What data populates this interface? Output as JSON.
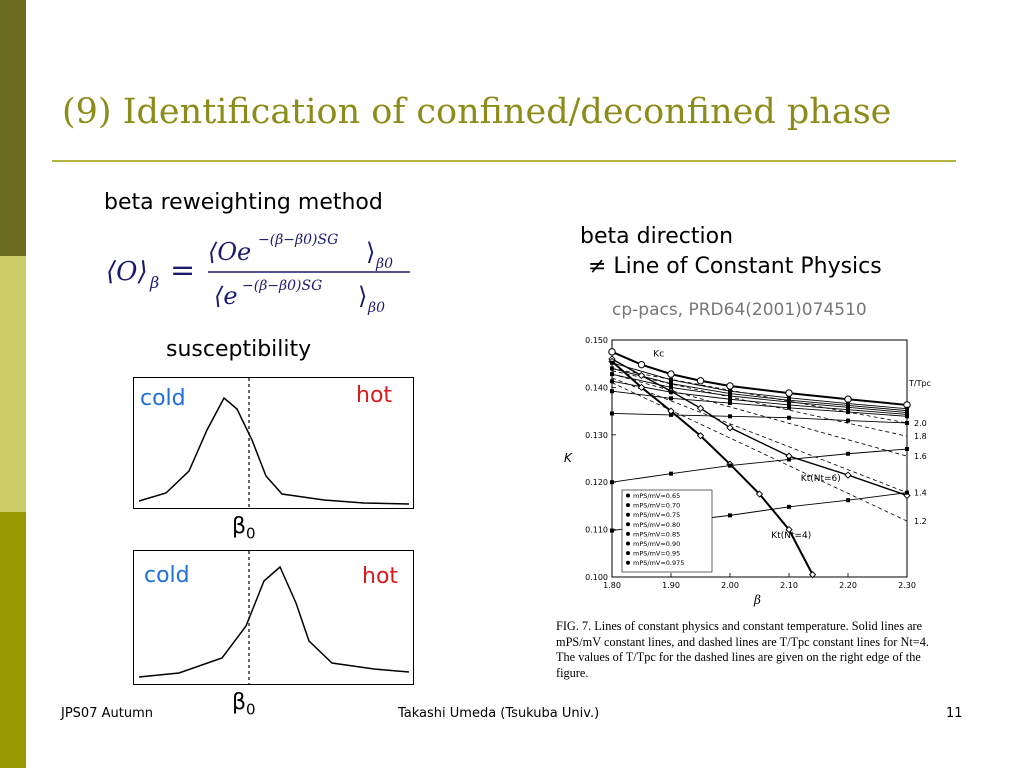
{
  "slide": {
    "title": "(9) Identification of confined/deconfined phase",
    "reweighting_label": "beta reweighting method",
    "beta_direction_line1": "beta direction",
    "beta_direction_line2": "≠ Line of Constant Physics",
    "citation": "cp-pacs, PRD64(2001)074510",
    "susceptibility_label": "susceptibility",
    "colors": {
      "title": "#8c8c1a",
      "cold": "#1f6fd6",
      "hot": "#d81b1b",
      "strip_dark": "#6b6b1f",
      "strip_light": "#cccc66",
      "strip_mid": "#999900"
    }
  },
  "formula": {
    "lhs": "⟨O⟩",
    "lhs_sub": "β",
    "equals": "=",
    "numerator": "⟨Oe",
    "numerator_exp": "−(β−β0)SG",
    "numerator_close": "⟩",
    "numerator_sub": "β0",
    "denominator": "⟨e",
    "denominator_exp": "−(β−β0)SG",
    "denominator_close": "⟩",
    "denominator_sub": "β0"
  },
  "plots": [
    {
      "cold": "cold",
      "hot": "hot",
      "beta": "β",
      "beta_sub": "0",
      "peak_position": "left-of-beta0"
    },
    {
      "cold": "cold",
      "hot": "hot",
      "beta": "β",
      "beta_sub": "0",
      "peak_position": "right-of-beta0"
    }
  ],
  "chart_data": {
    "type": "line",
    "xlabel": "β",
    "ylabel": "K",
    "xlim": [
      1.8,
      2.3
    ],
    "ylim": [
      0.1,
      0.15
    ],
    "x_ticks": [
      "1.80",
      "1.90",
      "2.00",
      "2.10",
      "2.20",
      "2.30"
    ],
    "y_ticks": [
      "0.100",
      "0.110",
      "0.120",
      "0.130",
      "0.140",
      "0.150"
    ],
    "right_axis_title": "T/Tpc",
    "right_axis_labels": [
      {
        "label": "2.0",
        "k": 0.1325
      },
      {
        "label": "1.8",
        "k": 0.1297
      },
      {
        "label": "1.6",
        "k": 0.1255
      },
      {
        "label": "1.4",
        "k": 0.1178
      },
      {
        "label": "1.2",
        "k": 0.1118
      }
    ],
    "annotations": [
      {
        "text": "Kc",
        "x": 1.87,
        "y": 0.1465
      },
      {
        "text": "Kt(Nt=6)",
        "x": 2.12,
        "y": 0.1203
      },
      {
        "text": "Kt(Nt=4)",
        "x": 2.07,
        "y": 0.1082
      }
    ],
    "legend_entries": [
      "mPS/mV=0.65",
      "mPS/mV=0.70",
      "mPS/mV=0.75",
      "mPS/mV=0.80",
      "mPS/mV=0.85",
      "mPS/mV=0.90",
      "mPS/mV=0.95",
      "mPS/mV=0.975"
    ],
    "legend_placement": "bottom-left",
    "series_kc": {
      "x": [
        1.8,
        1.85,
        1.9,
        1.95,
        2.0,
        2.1,
        2.2,
        2.3
      ],
      "y": [
        0.1475,
        0.1448,
        0.1428,
        0.1414,
        0.1403,
        0.1388,
        0.1375,
        0.1363
      ]
    },
    "series_kt6": {
      "x": [
        1.8,
        1.85,
        1.9,
        1.95,
        2.0,
        2.1,
        2.2,
        2.3
      ],
      "y": [
        0.146,
        0.1425,
        0.1392,
        0.1356,
        0.1315,
        0.1255,
        0.1215,
        0.1172
      ]
    },
    "series_kt4": {
      "x": [
        1.8,
        1.85,
        1.9,
        1.95,
        2.0,
        2.05,
        2.1,
        2.14
      ],
      "y": [
        0.1455,
        0.14,
        0.135,
        0.1298,
        0.1238,
        0.1175,
        0.11,
        0.1005
      ]
    },
    "series_mps": [
      {
        "x": [
          1.8,
          1.9,
          2.0,
          2.1,
          2.2,
          2.3
        ],
        "y": [
          0.1452,
          0.1416,
          0.1392,
          0.1378,
          0.1366,
          0.1355
        ]
      },
      {
        "x": [
          1.8,
          1.9,
          2.0,
          2.1,
          2.2,
          2.3
        ],
        "y": [
          0.144,
          0.1408,
          0.1387,
          0.1373,
          0.1362,
          0.1351
        ]
      },
      {
        "x": [
          1.8,
          1.9,
          2.0,
          2.1,
          2.2,
          2.3
        ],
        "y": [
          0.1428,
          0.14,
          0.1382,
          0.1369,
          0.1358,
          0.1347
        ]
      },
      {
        "x": [
          1.8,
          1.9,
          2.0,
          2.1,
          2.2,
          2.3
        ],
        "y": [
          0.1413,
          0.139,
          0.1375,
          0.1363,
          0.1353,
          0.1343
        ]
      },
      {
        "x": [
          1.8,
          1.9,
          2.0,
          2.1,
          2.2,
          2.3
        ],
        "y": [
          0.1392,
          0.1377,
          0.1367,
          0.1357,
          0.1348,
          0.1339
        ]
      },
      {
        "x": [
          1.8,
          1.9,
          2.0,
          2.1,
          2.2,
          2.3
        ],
        "y": [
          0.1345,
          0.1342,
          0.1339,
          0.1336,
          0.133,
          0.1325
        ]
      },
      {
        "x": [
          1.8,
          1.9,
          2.0,
          2.1,
          2.2,
          2.3
        ],
        "y": [
          0.12,
          0.1218,
          0.1235,
          0.1248,
          0.126,
          0.127
        ]
      },
      {
        "x": [
          1.8,
          1.9,
          2.0,
          2.1,
          2.2,
          2.3
        ],
        "y": [
          0.1098,
          0.1115,
          0.113,
          0.1148,
          0.1162,
          0.1178
        ]
      }
    ],
    "series_dashed": [
      {
        "x": [
          1.8,
          2.3
        ],
        "y": [
          0.144,
          0.1325
        ]
      },
      {
        "x": [
          1.8,
          2.3
        ],
        "y": [
          0.1435,
          0.1297
        ]
      },
      {
        "x": [
          1.8,
          2.3
        ],
        "y": [
          0.1428,
          0.1255
        ]
      },
      {
        "x": [
          1.8,
          2.3
        ],
        "y": [
          0.142,
          0.1178
        ]
      },
      {
        "x": [
          1.8,
          2.3
        ],
        "y": [
          0.141,
          0.1118
        ]
      }
    ]
  },
  "caption": {
    "text": "FIG. 7. Lines of constant physics and constant temperature. Solid lines are mPS/mV constant lines, and dashed lines are T/Tpc constant lines for Nt=4. The values of T/Tpc for the dashed lines are given on the right edge of the figure."
  },
  "footer": {
    "left": "JPS07 Autumn",
    "center": "Takashi Umeda (Tsukuba Univ.)",
    "page": "11"
  }
}
